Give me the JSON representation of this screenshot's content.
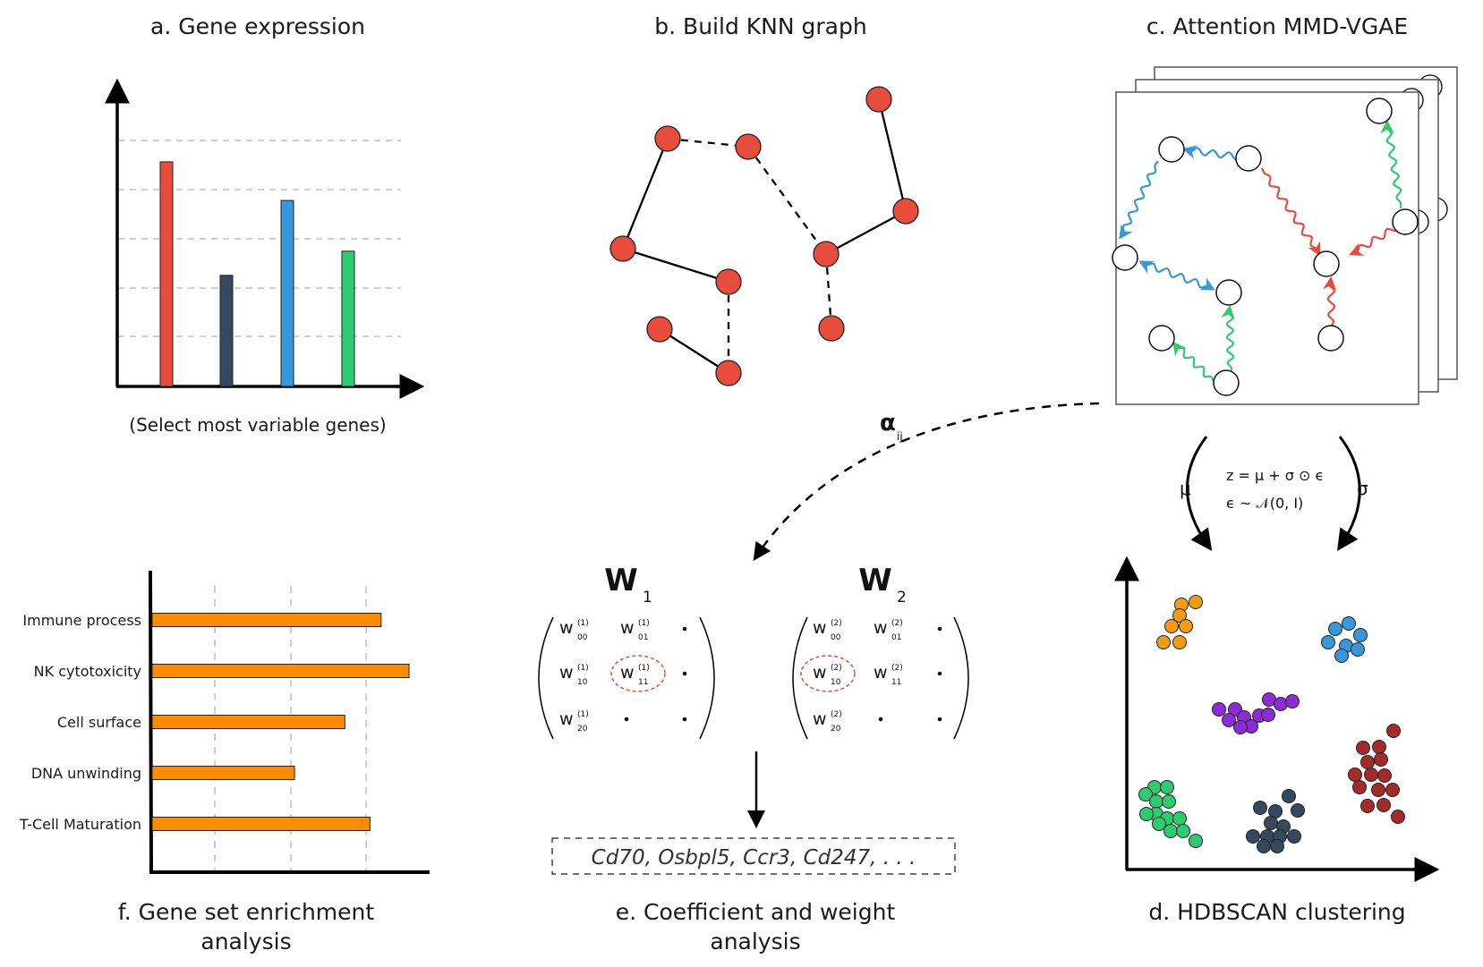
{
  "panels": {
    "a": {
      "title": "a. Gene expression",
      "caption": "(Select most variable genes)",
      "bar_colors": [
        "#e74c3c",
        "#34495e",
        "#3498db",
        "#2ecc71"
      ],
      "bar_values": [
        0.93,
        0.46,
        0.77,
        0.56
      ]
    },
    "b": {
      "title": "b. Build KNN graph",
      "node_color": "#e74c3c"
    },
    "c": {
      "title": "c. Attention MMD-VGAE",
      "edge_colors": {
        "blue": "#3498db",
        "red": "#e74c3c",
        "green": "#2ecc71"
      }
    },
    "d": {
      "title": "d. HDBSCAN clustering",
      "cluster_colors": [
        "#f39c12",
        "#3498db",
        "#8e2bd6",
        "#2ecc71",
        "#34495e",
        "#a52a2a"
      ]
    },
    "e": {
      "title_line1": "e. Coefficient and weight",
      "title_line2": "analysis",
      "genes_text": "Cd70, Osbpl5, Ccr3, Cd247, . . .",
      "alpha_label": "α",
      "alpha_sub": "ij",
      "W1": {
        "letter": "W",
        "index": "1"
      },
      "W2": {
        "letter": "W",
        "index": "2"
      }
    },
    "f": {
      "title_line1": "f. Gene set enrichment",
      "title_line2": "analysis",
      "bar_color": "#ff8c00",
      "terms": [
        {
          "label": "Immune process",
          "value": 0.82
        },
        {
          "label": "NK cytotoxicity",
          "value": 0.92
        },
        {
          "label": "Cell surface",
          "value": 0.69
        },
        {
          "label": "DNA unwinding",
          "value": 0.51
        },
        {
          "label": "T-Cell Maturation",
          "value": 0.78
        }
      ]
    }
  },
  "reparam": {
    "mu": "μ",
    "sigma": "σ",
    "eq1": "z = μ + σ ⊙ ϵ",
    "eq2": "ϵ ~ 𝒩(0, I)"
  }
}
